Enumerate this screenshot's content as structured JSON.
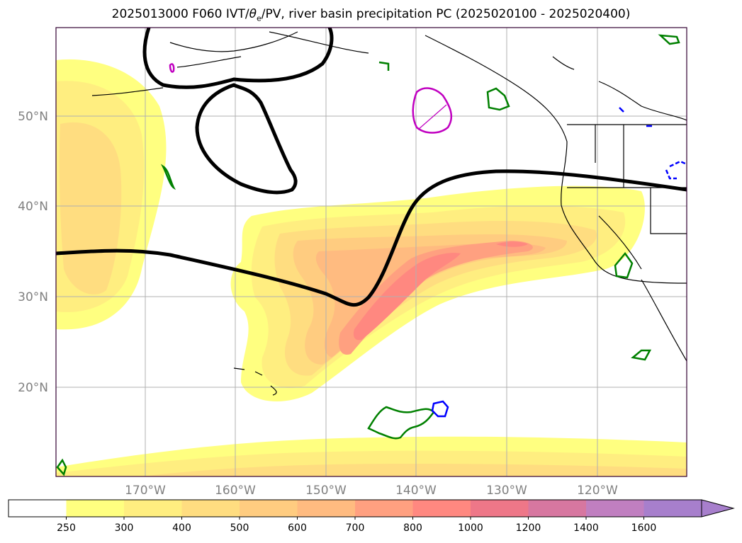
{
  "title_main": "2025013000 F060 IVT/",
  "title_theta": "θ",
  "title_sub": "e",
  "title_rest": "/PV, river basin precipitation PC (2025020100 - 2025020400)",
  "lat_labels": [
    "50°N",
    "40°N",
    "30°N",
    "20°N"
  ],
  "lon_labels": [
    "170°W",
    "160°W",
    "150°W",
    "140°W",
    "130°W",
    "120°W"
  ],
  "colorbar": {
    "ticks": [
      "250",
      "300",
      "400",
      "500",
      "600",
      "700",
      "800",
      "1000",
      "1200",
      "1400",
      "1600"
    ],
    "colors": [
      "#ffffff",
      "#ffff80",
      "#ffee80",
      "#ffdd80",
      "#ffcc80",
      "#ffbb80",
      "#ffa080",
      "#ff8880",
      "#ee7788",
      "#d777a0",
      "#c07fc0",
      "#a77fcc"
    ],
    "extend": "max"
  },
  "colors": {
    "pv_contour": "#000000",
    "green_contour": "#008000",
    "blue_contour": "#0000ff",
    "magenta_contour": "#c000c0",
    "grid": "#b0b0b0",
    "frame": "#330033"
  }
}
